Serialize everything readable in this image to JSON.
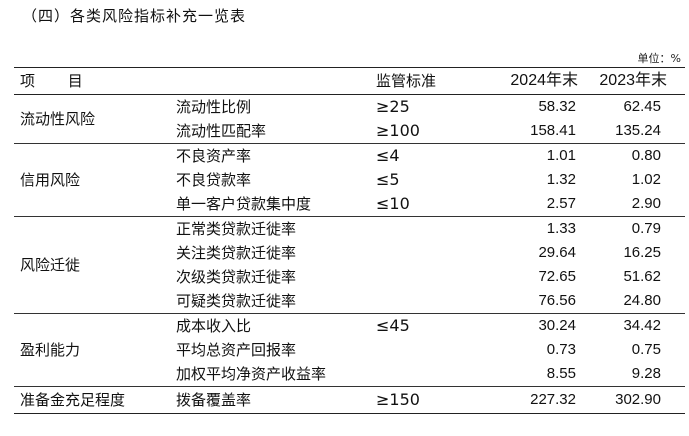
{
  "title": "（四）各类风险指标补充一览表",
  "unit": "单位：%",
  "header": {
    "item": "项 目",
    "standard": "监管标准",
    "y2024": "2024年末",
    "y2023": "2023年末"
  },
  "groups": [
    {
      "category": "流动性风险",
      "rows": [
        {
          "indicator": "流动性比例",
          "standard": "≥25",
          "y2024": "58.32",
          "y2023": "62.45"
        },
        {
          "indicator": "流动性匹配率",
          "standard": "≥100",
          "y2024": "158.41",
          "y2023": "135.24"
        }
      ]
    },
    {
      "category": "信用风险",
      "rows": [
        {
          "indicator": "不良资产率",
          "standard": "≤4",
          "y2024": "1.01",
          "y2023": "0.80"
        },
        {
          "indicator": "不良贷款率",
          "standard": "≤5",
          "y2024": "1.32",
          "y2023": "1.02"
        },
        {
          "indicator": "单一客户贷款集中度",
          "standard": "≤10",
          "y2024": "2.57",
          "y2023": "2.90"
        }
      ]
    },
    {
      "category": "风险迁徙",
      "rows": [
        {
          "indicator": "正常类贷款迁徙率",
          "standard": "",
          "y2024": "1.33",
          "y2023": "0.79"
        },
        {
          "indicator": "关注类贷款迁徙率",
          "standard": "",
          "y2024": "29.64",
          "y2023": "16.25"
        },
        {
          "indicator": "次级类贷款迁徙率",
          "standard": "",
          "y2024": "72.65",
          "y2023": "51.62"
        },
        {
          "indicator": "可疑类贷款迁徙率",
          "standard": "",
          "y2024": "76.56",
          "y2023": "24.80"
        }
      ]
    },
    {
      "category": "盈利能力",
      "rows": [
        {
          "indicator": "成本收入比",
          "standard": "≤45",
          "y2024": "30.24",
          "y2023": "34.42"
        },
        {
          "indicator": "平均总资产回报率",
          "standard": "",
          "y2024": "0.73",
          "y2023": "0.75"
        },
        {
          "indicator": "加权平均净资产收益率",
          "standard": "",
          "y2024": "8.55",
          "y2023": "9.28"
        }
      ]
    },
    {
      "category": "准备金充足程度",
      "rows": [
        {
          "indicator": "拨备覆盖率",
          "standard": "≥150",
          "y2024": "227.32",
          "y2023": "302.90"
        }
      ]
    }
  ]
}
